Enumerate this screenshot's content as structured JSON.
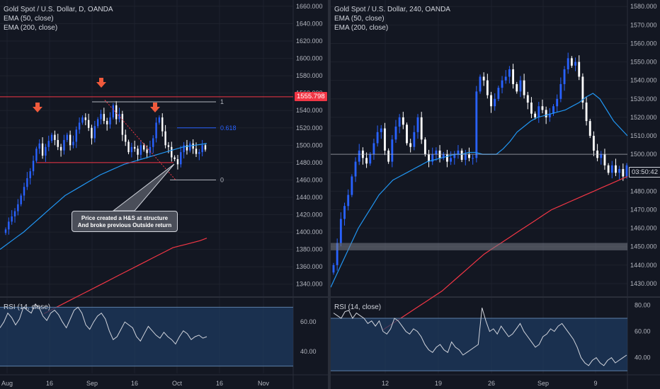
{
  "colors": {
    "bg": "#131722",
    "grid": "#1e222d",
    "text": "#b2b5be",
    "candle_up": "#2962ff",
    "candle_down": "#ffffff",
    "ema50": "#2196f3",
    "ema200": "#f23645",
    "rsi": "#d1d4dc",
    "rsi_band": "#1e3a5f",
    "level": "#f23645",
    "fib": "#b2b5be",
    "fib618": "#2962ff",
    "arrow": "#f05a3c"
  },
  "left": {
    "legend": {
      "title": "Gold Spot / U.S. Dollar, D, OANDA",
      "ema50": "EMA (50, close)",
      "ema200": "EMA (200, close)"
    },
    "rsi_label": "RSI (14, close)",
    "price_tag": "1555.798",
    "callout": {
      "line1": "Price created a H&S at structure",
      "line2": "And broke previous Outside return"
    },
    "fib_labels": {
      "top": "1",
      "mid": "0.618",
      "bottom": "0"
    }
  },
  "right": {
    "legend": {
      "title": "Gold Spot / U.S. Dollar, 240, OANDA",
      "ema50": "EMA (50, close)",
      "ema200": "EMA (200, close)"
    },
    "rsi_label": "RSI (14, close)",
    "time_tag": "03:50:42"
  },
  "chart_data": [
    {
      "type": "line",
      "title": "Gold Spot / U.S. Dollar, D, OANDA",
      "y_axis": {
        "ticks": [
          1340,
          1360,
          1380,
          1400,
          1420,
          1440,
          1460,
          1480,
          1500,
          1520,
          1540,
          1560,
          1580,
          1600,
          1620,
          1640,
          1660
        ],
        "tick_labels": [
          "1340.000",
          "1360.000",
          "1380.000",
          "1400.000",
          "1420.000",
          "1440.000",
          "1460.000",
          "1480.000",
          "1500.000",
          "1520.000",
          "1540.000",
          "1560.000",
          "1580.000",
          "1600.000",
          "1620.000",
          "1640.000",
          "1660.000"
        ],
        "range": [
          1330,
          1664
        ]
      },
      "x_axis": {
        "tick_labels": [
          "Aug",
          "16",
          "Sep",
          "16",
          "Oct",
          "16",
          "Nov"
        ]
      },
      "close": [
        1403,
        1412,
        1418,
        1424,
        1432,
        1442,
        1452,
        1462,
        1470,
        1482,
        1496,
        1502,
        1488,
        1498,
        1505,
        1512,
        1506,
        1498,
        1494,
        1506,
        1512,
        1500,
        1504,
        1518,
        1526,
        1532,
        1529,
        1520,
        1508,
        1522,
        1530,
        1536,
        1528,
        1524,
        1532,
        1546,
        1530,
        1536,
        1512,
        1504,
        1492,
        1498,
        1496,
        1489,
        1500,
        1495,
        1491,
        1498,
        1508,
        1526,
        1532,
        1516,
        1500,
        1498,
        1486,
        1484,
        1478,
        1492,
        1500,
        1494,
        1502,
        1496,
        1490,
        1492,
        1500,
        1495
      ],
      "ema50": [
        1380,
        1385,
        1390,
        1395,
        1400,
        1406,
        1412,
        1418,
        1424,
        1430,
        1436,
        1442,
        1446,
        1450,
        1454,
        1458,
        1462,
        1466,
        1469,
        1472,
        1475,
        1478,
        1480,
        1482,
        1484,
        1486,
        1488,
        1490,
        1492,
        1494,
        1496,
        1498,
        1499,
        1500,
        1501,
        1502
      ],
      "ema200": [
        1306,
        1310,
        1314,
        1318,
        1322,
        1326,
        1330,
        1334,
        1338,
        1342,
        1346,
        1350,
        1354,
        1358,
        1362,
        1366,
        1370,
        1374,
        1378,
        1382,
        1384,
        1386,
        1388,
        1390,
        1393
      ],
      "levels": {
        "resistance": 1555.798,
        "neckline": 1480,
        "fib_1": 1550,
        "fib_0618": 1520,
        "fib_0": 1460
      },
      "rsi": {
        "ticks": [
          40,
          60
        ],
        "tick_labels": [
          "40.00",
          "60.00"
        ],
        "band": [
          30,
          70
        ],
        "range": [
          25,
          75
        ],
        "values": [
          56,
          60,
          66,
          63,
          58,
          62,
          70,
          68,
          66,
          72,
          70,
          64,
          61,
          66,
          68,
          65,
          60,
          56,
          62,
          68,
          70,
          66,
          58,
          55,
          60,
          64,
          66,
          62,
          54,
          48,
          50,
          55,
          60,
          58,
          56,
          50,
          47,
          52,
          57,
          54,
          51,
          49,
          53,
          50,
          48,
          45,
          50,
          54,
          52,
          48,
          50,
          51,
          49,
          50
        ]
      }
    },
    {
      "type": "line",
      "title": "Gold Spot / U.S. Dollar, 240, OANDA",
      "y_axis": {
        "ticks": [
          1430,
          1440,
          1450,
          1460,
          1470,
          1480,
          1490,
          1500,
          1510,
          1520,
          1530,
          1540,
          1550,
          1560,
          1570,
          1580
        ],
        "tick_labels": [
          "1430.000",
          "1440.000",
          "1450.000",
          "1460.000",
          "1470.000",
          "1480.000",
          "1490.000",
          "1500.000",
          "1510.000",
          "1520.000",
          "1530.000",
          "1540.000",
          "1550.000",
          "1560.000",
          "1570.000",
          "1580.000"
        ],
        "range": [
          1425,
          1582
        ]
      },
      "x_axis": {
        "tick_labels": [
          "12",
          "19",
          "26",
          "Sep",
          "9"
        ]
      },
      "close": [
        1440,
        1452,
        1465,
        1472,
        1478,
        1488,
        1496,
        1502,
        1498,
        1495,
        1500,
        1506,
        1512,
        1514,
        1502,
        1496,
        1508,
        1515,
        1520,
        1516,
        1506,
        1504,
        1512,
        1520,
        1508,
        1500,
        1496,
        1500,
        1502,
        1498,
        1500,
        1496,
        1498,
        1500,
        1502,
        1497,
        1500,
        1498,
        1498,
        1534,
        1542,
        1540,
        1532,
        1526,
        1530,
        1536,
        1540,
        1542,
        1546,
        1538,
        1534,
        1540,
        1532,
        1528,
        1522,
        1520,
        1526,
        1524,
        1520,
        1522,
        1526,
        1530,
        1538,
        1546,
        1552,
        1548,
        1550,
        1542,
        1528,
        1518,
        1510,
        1502,
        1498,
        1500,
        1494,
        1490,
        1494,
        1490,
        1492,
        1488,
        1494
      ],
      "ema50": [
        1428,
        1436,
        1444,
        1452,
        1460,
        1466,
        1472,
        1478,
        1482,
        1486,
        1488,
        1490,
        1492,
        1494,
        1496,
        1497,
        1498,
        1499,
        1500,
        1500,
        1501,
        1501,
        1500,
        1500,
        1500,
        1503,
        1507,
        1512,
        1515,
        1518,
        1520,
        1521,
        1522,
        1523,
        1524,
        1526,
        1528,
        1531,
        1533,
        1530,
        1524,
        1518,
        1514,
        1510
      ],
      "ema200": [
        1405,
        1408,
        1411,
        1414,
        1417,
        1420,
        1423,
        1426,
        1430,
        1434,
        1438,
        1442,
        1446,
        1449,
        1452,
        1455,
        1458,
        1461,
        1464,
        1467,
        1470,
        1472,
        1474,
        1476,
        1478,
        1480,
        1482,
        1484,
        1486,
        1488
      ],
      "levels": {
        "support_zone": [
          1448,
          1452
        ],
        "horizontal": 1500
      },
      "rsi": {
        "ticks": [
          40,
          60,
          80
        ],
        "tick_labels": [
          "40.00",
          "60.00",
          "80.00"
        ],
        "band": [
          30,
          70
        ],
        "range": [
          28,
          84
        ],
        "values": [
          74,
          72,
          70,
          75,
          76,
          70,
          74,
          72,
          70,
          66,
          68,
          64,
          68,
          60,
          58,
          62,
          70,
          68,
          64,
          60,
          58,
          62,
          60,
          56,
          50,
          46,
          44,
          48,
          50,
          46,
          44,
          52,
          48,
          46,
          42,
          44,
          46,
          48,
          50,
          78,
          68,
          60,
          62,
          58,
          64,
          60,
          56,
          58,
          62,
          66,
          60,
          56,
          52,
          48,
          50,
          56,
          58,
          62,
          60,
          64,
          66,
          62,
          58,
          54,
          48,
          40,
          36,
          34,
          38,
          40,
          36,
          34,
          38,
          40,
          36,
          38,
          40,
          42
        ]
      }
    }
  ]
}
